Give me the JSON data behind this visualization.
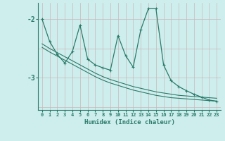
{
  "xlabel": "Humidex (Indice chaleur)",
  "bg_color": "#ceeeed",
  "grid_color": "#c0d8d0",
  "line_color": "#2a7a6a",
  "vgrid_color": "#c8b8b8",
  "x_ticks": [
    0,
    1,
    2,
    3,
    4,
    5,
    6,
    7,
    8,
    9,
    10,
    11,
    12,
    13,
    14,
    15,
    16,
    17,
    18,
    19,
    20,
    21,
    22,
    23
  ],
  "ylim": [
    -3.55,
    -1.72
  ],
  "yticks": [
    -3.0,
    -2.0
  ],
  "main_y": [
    -2.0,
    -2.38,
    -2.6,
    -2.75,
    -2.55,
    -2.1,
    -2.68,
    -2.78,
    -2.83,
    -2.87,
    -2.28,
    -2.62,
    -2.82,
    -2.18,
    -1.82,
    -1.82,
    -2.78,
    -3.05,
    -3.15,
    -3.22,
    -3.28,
    -3.33,
    -3.38,
    -3.4
  ],
  "line2_y": [
    -2.48,
    -2.56,
    -2.63,
    -2.7,
    -2.77,
    -2.84,
    -2.91,
    -2.98,
    -3.04,
    -3.09,
    -3.13,
    -3.17,
    -3.21,
    -3.24,
    -3.27,
    -3.3,
    -3.32,
    -3.34,
    -3.35,
    -3.36,
    -3.37,
    -3.38,
    -3.39,
    -3.4
  ],
  "line3_y": [
    -2.42,
    -2.5,
    -2.57,
    -2.64,
    -2.71,
    -2.78,
    -2.85,
    -2.92,
    -2.98,
    -3.03,
    -3.07,
    -3.11,
    -3.15,
    -3.18,
    -3.21,
    -3.24,
    -3.26,
    -3.28,
    -3.3,
    -3.31,
    -3.32,
    -3.33,
    -3.34,
    -3.35
  ]
}
